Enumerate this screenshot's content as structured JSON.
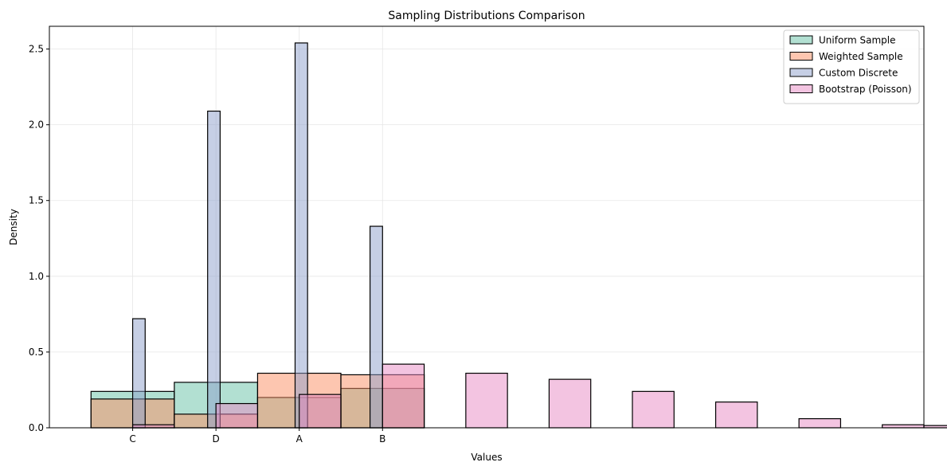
{
  "chart_data": {
    "type": "bar",
    "title": "Sampling Distributions Comparison",
    "xlabel": "Values",
    "ylabel": "Density",
    "ylim": [
      0,
      2.65
    ],
    "xlim": [
      -1.0,
      9.5
    ],
    "yticks": [
      "0.0",
      "0.5",
      "1.0",
      "1.5",
      "2.0",
      "2.5"
    ],
    "xticks": [
      {
        "x": 0,
        "label": "C"
      },
      {
        "x": 1,
        "label": "D"
      },
      {
        "x": 2,
        "label": "A"
      },
      {
        "x": 3,
        "label": "B"
      }
    ],
    "grid": true,
    "legend_position": "top-right",
    "series": [
      {
        "name": "Uniform Sample",
        "color": "#66c2a5",
        "bars": [
          {
            "x0": -0.5,
            "x1": 0.5,
            "value": 0.24
          },
          {
            "x0": 0.5,
            "x1": 1.5,
            "value": 0.3
          },
          {
            "x0": 1.5,
            "x1": 2.5,
            "value": 0.2
          },
          {
            "x0": 2.5,
            "x1": 3.5,
            "value": 0.26
          }
        ]
      },
      {
        "name": "Weighted Sample",
        "color": "#fc8d62",
        "bars": [
          {
            "x0": -0.5,
            "x1": 0.5,
            "value": 0.19
          },
          {
            "x0": 0.5,
            "x1": 1.5,
            "value": 0.09
          },
          {
            "x0": 1.5,
            "x1": 2.5,
            "value": 0.36
          },
          {
            "x0": 2.5,
            "x1": 3.5,
            "value": 0.35
          }
        ]
      },
      {
        "name": "Custom Discrete",
        "color": "#8da0cb",
        "bars": [
          {
            "x0": 0.0,
            "x1": 0.15,
            "value": 0.72
          },
          {
            "x0": 0.9,
            "x1": 1.05,
            "value": 2.09
          },
          {
            "x0": 1.95,
            "x1": 2.1,
            "value": 2.54
          },
          {
            "x0": 2.85,
            "x1": 3.0,
            "value": 1.33
          }
        ]
      },
      {
        "name": "Bootstrap (Poisson)",
        "color": "#e78ac3",
        "bars": [
          {
            "x0": 0.0,
            "x1": 0.5,
            "value": 0.02
          },
          {
            "x0": 1.0,
            "x1": 1.5,
            "value": 0.16
          },
          {
            "x0": 2.0,
            "x1": 2.5,
            "value": 0.22
          },
          {
            "x0": 3.0,
            "x1": 3.5,
            "value": 0.42
          },
          {
            "x0": 4.0,
            "x1": 4.5,
            "value": 0.36
          },
          {
            "x0": 5.0,
            "x1": 5.5,
            "value": 0.32
          },
          {
            "x0": 6.0,
            "x1": 6.5,
            "value": 0.24
          },
          {
            "x0": 7.0,
            "x1": 7.5,
            "value": 0.17
          },
          {
            "x0": 8.0,
            "x1": 8.5,
            "value": 0.06
          },
          {
            "x0": 9.0,
            "x1": 9.5,
            "value": 0.02
          },
          {
            "x0": 9.5,
            "x1": 10.0,
            "value": 0.015
          }
        ]
      }
    ]
  }
}
